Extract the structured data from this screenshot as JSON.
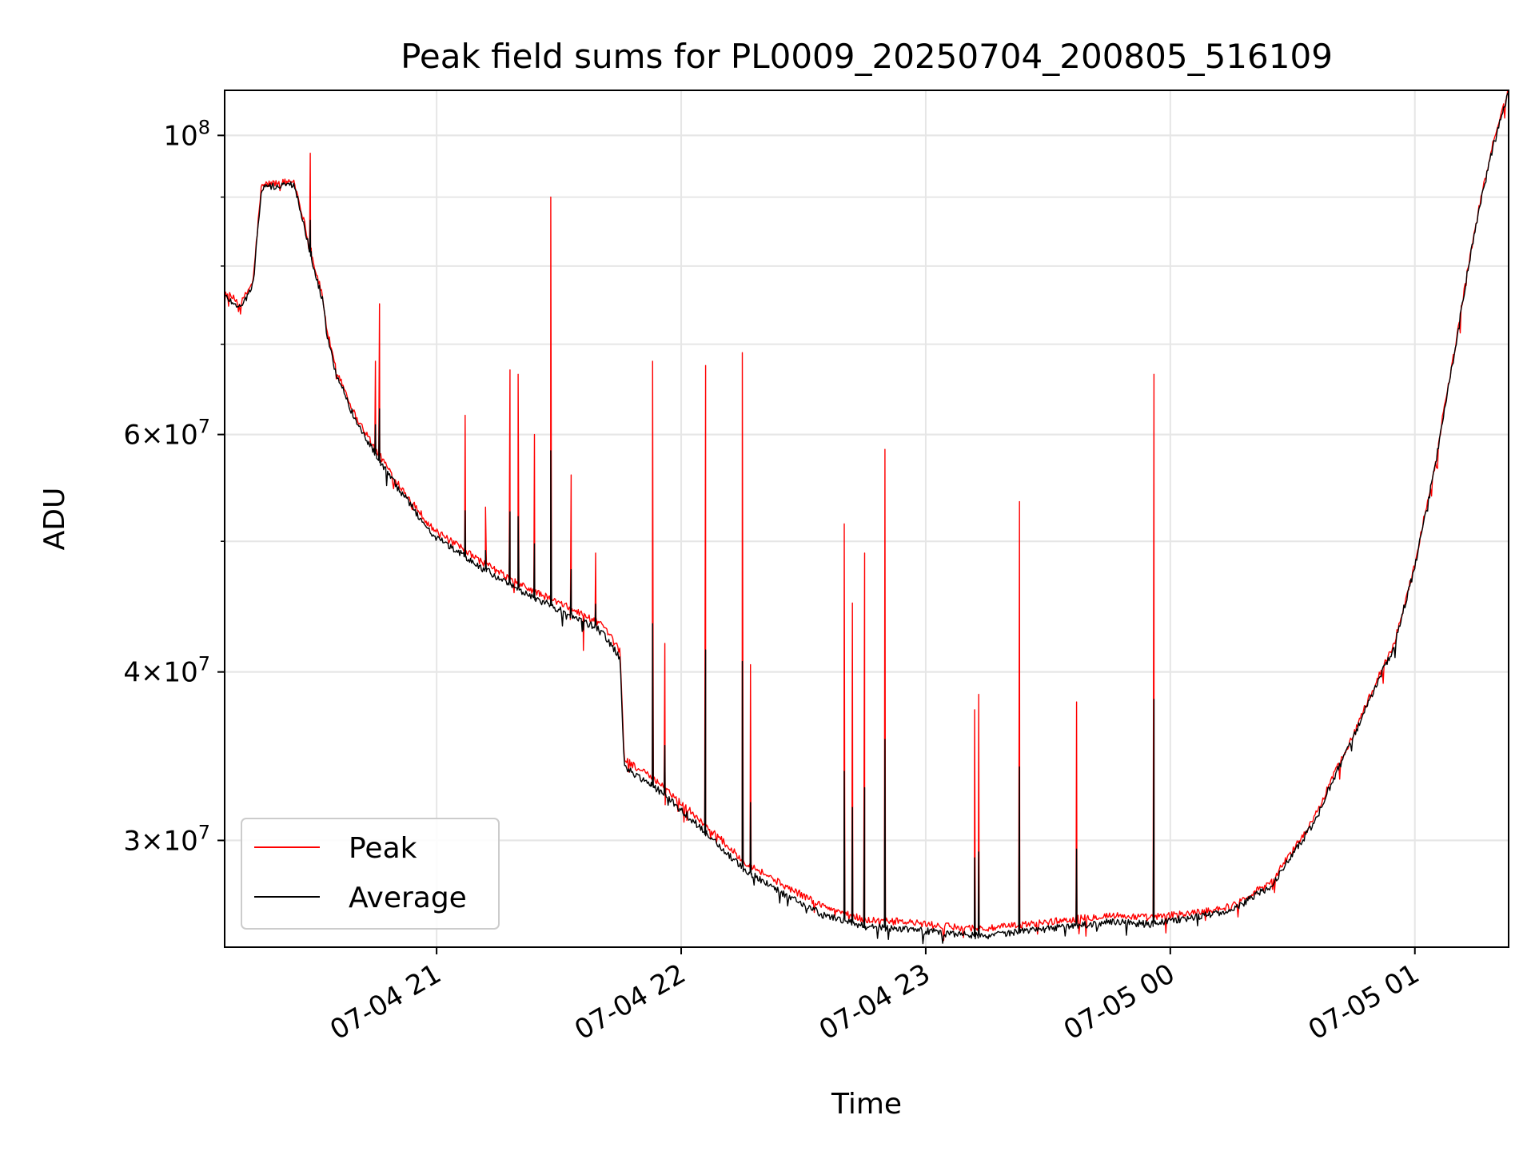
{
  "chart_data": {
    "type": "line",
    "title": "Peak field sums for PL0009_20250704_200805_516109",
    "xlabel": "Time",
    "ylabel": "ADU",
    "x_range": [
      "2025-07-04 20:08",
      "2025-07-05 01:23"
    ],
    "y_range": [
      25000000,
      108000000
    ],
    "y_scale": "log",
    "grid": true,
    "legend_position": "lower-left",
    "x_ticks": [
      "07-04 21",
      "07-04 22",
      "07-04 23",
      "07-05 00",
      "07-05 01"
    ],
    "y_ticks": [
      {
        "value": 30000000,
        "mant": "3",
        "exp": "7"
      },
      {
        "value": 40000000,
        "mant": "4",
        "exp": "7"
      },
      {
        "value": 60000000,
        "mant": "6",
        "exp": "7"
      },
      {
        "value": 100000000,
        "mant": "",
        "exp": "8"
      }
    ],
    "series": [
      {
        "name": "Peak",
        "color": "#ff0000",
        "x": [
          "2025-07-04 20:08",
          "2025-07-04 20:12",
          "2025-07-04 20:15",
          "2025-07-04 20:17",
          "2025-07-04 20:18",
          "2025-07-04 20:25",
          "2025-07-04 20:30",
          "2025-07-04 20:32",
          "2025-07-04 20:33",
          "2025-07-04 20:35",
          "2025-07-04 20:40",
          "2025-07-04 20:45",
          "2025-07-04 20:50",
          "2025-07-04 20:55",
          "2025-07-04 20:58",
          "2025-07-04 21:00",
          "2025-07-04 21:10",
          "2025-07-04 21:20",
          "2025-07-04 21:30",
          "2025-07-04 21:40",
          "2025-07-04 21:45",
          "2025-07-04 21:46",
          "2025-07-04 21:55",
          "2025-07-04 22:05",
          "2025-07-04 22:15",
          "2025-07-04 22:25",
          "2025-07-04 22:35",
          "2025-07-04 22:45",
          "2025-07-04 22:55",
          "2025-07-04 23:05",
          "2025-07-04 23:15",
          "2025-07-04 23:25",
          "2025-07-04 23:35",
          "2025-07-04 23:45",
          "2025-07-04 23:55",
          "2025-07-05 00:05",
          "2025-07-05 00:15",
          "2025-07-05 00:25",
          "2025-07-05 00:35",
          "2025-07-05 00:45",
          "2025-07-05 00:55",
          "2025-07-05 01:00",
          "2025-07-05 01:05",
          "2025-07-05 01:10",
          "2025-07-05 01:15",
          "2025-07-05 01:20",
          "2025-07-05 01:23"
        ],
        "values": [
          76500000,
          75000000,
          78000000,
          91500000,
          92000000,
          92500000,
          80000000,
          76000000,
          72000000,
          67500000,
          62000000,
          58500000,
          55500000,
          53000000,
          51500000,
          50800000,
          48500000,
          46500000,
          45000000,
          43500000,
          41500000,
          34500000,
          33000000,
          31000000,
          29000000,
          27800000,
          26800000,
          26200000,
          26100000,
          25900000,
          25800000,
          26000000,
          26200000,
          26400000,
          26300000,
          26500000,
          26800000,
          28000000,
          31000000,
          36000000,
          42000000,
          48000000,
          57000000,
          70000000,
          86000000,
          101000000,
          108000000
        ]
      },
      {
        "name": "Average",
        "color": "#000000",
        "x": [
          "2025-07-04 20:08",
          "2025-07-04 20:12",
          "2025-07-04 20:15",
          "2025-07-04 20:17",
          "2025-07-04 20:18",
          "2025-07-04 20:25",
          "2025-07-04 20:30",
          "2025-07-04 20:32",
          "2025-07-04 20:33",
          "2025-07-04 20:35",
          "2025-07-04 20:40",
          "2025-07-04 20:45",
          "2025-07-04 20:50",
          "2025-07-04 20:55",
          "2025-07-04 20:58",
          "2025-07-04 21:00",
          "2025-07-04 21:10",
          "2025-07-04 21:20",
          "2025-07-04 21:30",
          "2025-07-04 21:40",
          "2025-07-04 21:45",
          "2025-07-04 21:46",
          "2025-07-04 21:55",
          "2025-07-04 22:05",
          "2025-07-04 22:15",
          "2025-07-04 22:25",
          "2025-07-04 22:35",
          "2025-07-04 22:45",
          "2025-07-04 22:55",
          "2025-07-04 23:05",
          "2025-07-04 23:15",
          "2025-07-04 23:25",
          "2025-07-04 23:35",
          "2025-07-04 23:45",
          "2025-07-04 23:55",
          "2025-07-05 00:05",
          "2025-07-05 00:15",
          "2025-07-05 00:25",
          "2025-07-05 00:35",
          "2025-07-05 00:45",
          "2025-07-05 00:55",
          "2025-07-05 01:00",
          "2025-07-05 01:05",
          "2025-07-05 01:10",
          "2025-07-05 01:15",
          "2025-07-05 01:20",
          "2025-07-05 01:23"
        ],
        "values": [
          76000000,
          74500000,
          77500000,
          91000000,
          91500000,
          92000000,
          79500000,
          75500000,
          71500000,
          67000000,
          61500000,
          58000000,
          55000000,
          52500000,
          51000000,
          50300000,
          48000000,
          46000000,
          44500000,
          43000000,
          41000000,
          34000000,
          32600000,
          30600000,
          28600000,
          27400000,
          26400000,
          25900000,
          25800000,
          25600000,
          25500000,
          25700000,
          25900000,
          26100000,
          26000000,
          26300000,
          26600000,
          27800000,
          30800000,
          35800000,
          41800000,
          47800000,
          56800000,
          69800000,
          85800000,
          100500000,
          107500000
        ]
      }
    ],
    "spikes": {
      "x": [
        "2025-07-04 20:29",
        "2025-07-04 20:45",
        "2025-07-04 20:46",
        "2025-07-04 21:07",
        "2025-07-04 21:12",
        "2025-07-04 21:18",
        "2025-07-04 21:20",
        "2025-07-04 21:24",
        "2025-07-04 21:28",
        "2025-07-04 21:33",
        "2025-07-04 21:36",
        "2025-07-04 21:39",
        "2025-07-04 21:53",
        "2025-07-04 21:56",
        "2025-07-04 22:06",
        "2025-07-04 22:15",
        "2025-07-04 22:17",
        "2025-07-04 22:40",
        "2025-07-04 22:42",
        "2025-07-04 22:45",
        "2025-07-04 22:50",
        "2025-07-04 23:12",
        "2025-07-04 23:13",
        "2025-07-04 23:23",
        "2025-07-04 23:37",
        "2025-07-04 23:56"
      ],
      "values": [
        97000000,
        68000000,
        75000000,
        62000000,
        53000000,
        67000000,
        66500000,
        60000000,
        90000000,
        56000000,
        41500000,
        49000000,
        68000000,
        42000000,
        67500000,
        69000000,
        40500000,
        51500000,
        45000000,
        49000000,
        58500000,
        37500000,
        38500000,
        53500000,
        38000000,
        66500000
      ]
    }
  }
}
